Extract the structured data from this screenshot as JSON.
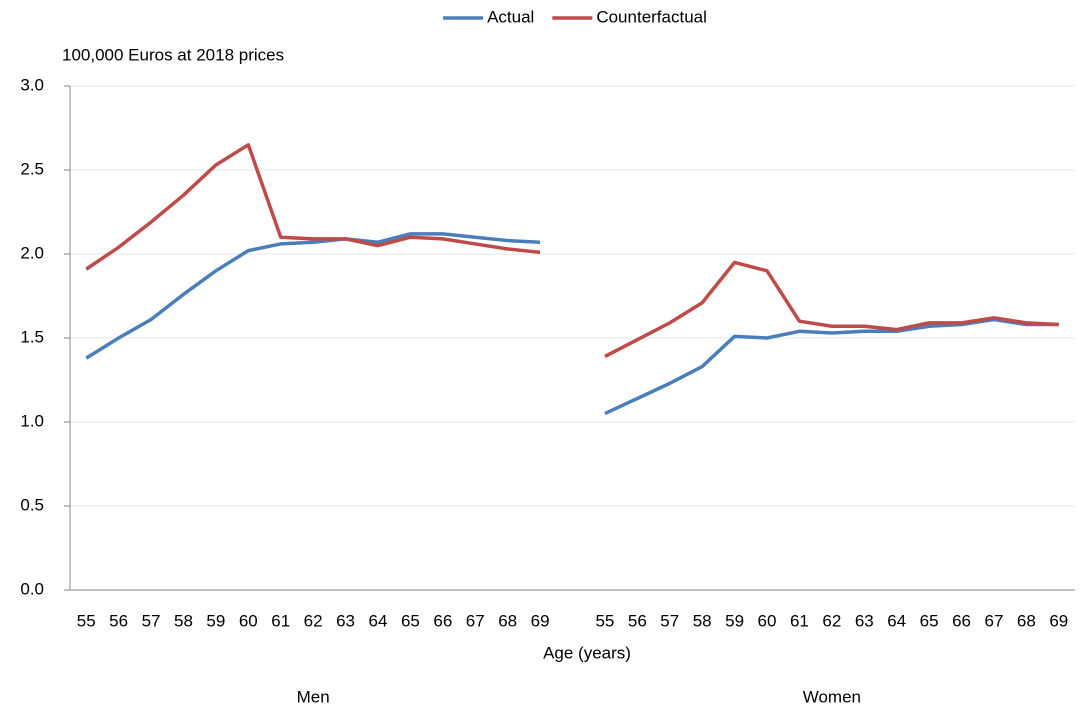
{
  "chart_data": {
    "type": "line",
    "y_label": "100,000 Euros at 2018 prices",
    "x_label": "Age (years)",
    "group_labels": [
      "Men",
      "Women"
    ],
    "categories": [
      "55",
      "56",
      "57",
      "58",
      "59",
      "60",
      "61",
      "62",
      "63",
      "64",
      "65",
      "66",
      "67",
      "68",
      "69",
      null,
      "55",
      "56",
      "57",
      "58",
      "59",
      "60",
      "61",
      "62",
      "63",
      "64",
      "65",
      "66",
      "67",
      "68",
      "69"
    ],
    "series": [
      {
        "name": "Actual",
        "color": "#4a7ebb",
        "values": [
          1.38,
          1.5,
          1.61,
          1.76,
          1.9,
          2.02,
          2.06,
          2.07,
          2.09,
          2.07,
          2.12,
          2.12,
          2.1,
          2.08,
          2.07,
          null,
          1.05,
          1.14,
          1.23,
          1.33,
          1.51,
          1.5,
          1.54,
          1.53,
          1.54,
          1.54,
          1.57,
          1.58,
          1.61,
          1.58,
          1.58
        ]
      },
      {
        "name": "Counterfactual",
        "color": "#be4b48",
        "values": [
          1.91,
          2.04,
          2.19,
          2.35,
          2.53,
          2.65,
          2.1,
          2.09,
          2.09,
          2.05,
          2.1,
          2.09,
          2.06,
          2.03,
          2.01,
          null,
          1.39,
          1.49,
          1.59,
          1.71,
          1.95,
          1.9,
          1.6,
          1.57,
          1.57,
          1.55,
          1.59,
          1.59,
          1.62,
          1.59,
          1.58
        ]
      }
    ],
    "ylim": [
      0,
      3
    ],
    "yticks": [
      {
        "value": 0,
        "label": "0.0"
      },
      {
        "value": 0.5,
        "label": "0.5"
      },
      {
        "value": 1,
        "label": "1.0"
      },
      {
        "value": 1.5,
        "label": "1.5"
      },
      {
        "value": 2,
        "label": "2.0"
      },
      {
        "value": 2.5,
        "label": "2.5"
      },
      {
        "value": 3,
        "label": "3.0"
      }
    ],
    "grid": true,
    "legend": "top"
  }
}
